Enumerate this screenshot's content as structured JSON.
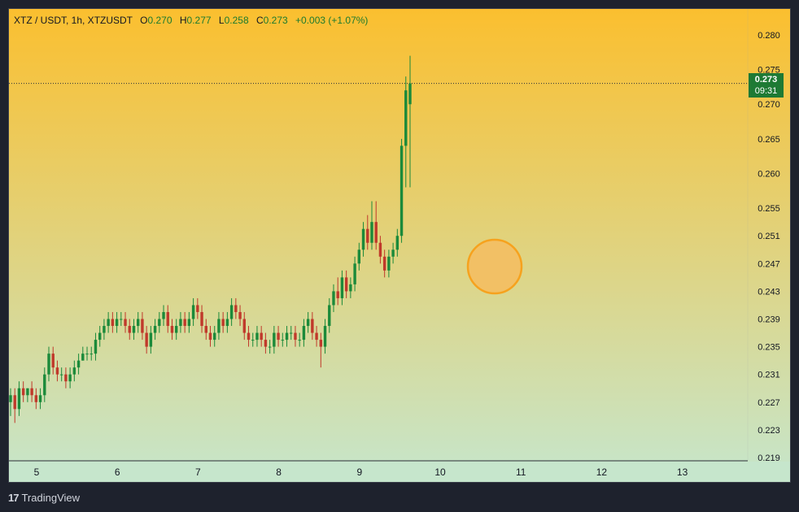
{
  "header": {
    "symbol": "XTZ / USDT, 1h, XTZUSDT",
    "open_label": "O",
    "open": "0.270",
    "high_label": "H",
    "high": "0.277",
    "low_label": "L",
    "low": "0.258",
    "close_label": "C",
    "close": "0.273",
    "change": "+0.003 (+1.07%)"
  },
  "price_tag": {
    "price": "0.273",
    "countdown": "09:31"
  },
  "footer": {
    "brand": "TradingView",
    "logo": "17"
  },
  "colors": {
    "up": "#1b8a3a",
    "down": "#c0392b",
    "bg_top": "#fbbf2f",
    "bg_bottom": "#c6e6cc",
    "marker": "#f6a21e"
  },
  "chart_data": {
    "type": "candlestick",
    "x_ticks": [
      "5",
      "6",
      "7",
      "8",
      "9",
      "10",
      "11",
      "12",
      "13"
    ],
    "y_ticks": [
      "0.280",
      "0.275",
      "0.270",
      "0.265",
      "0.260",
      "0.255",
      "0.251",
      "0.247",
      "0.243",
      "0.239",
      "0.235",
      "0.231",
      "0.227",
      "0.223",
      "0.219"
    ],
    "ylim": [
      0.219,
      0.28
    ],
    "last_price": 0.273,
    "candles": [
      [
        0.227,
        0.229,
        0.225,
        0.228
      ],
      [
        0.228,
        0.229,
        0.224,
        0.226
      ],
      [
        0.226,
        0.23,
        0.225,
        0.229
      ],
      [
        0.229,
        0.23,
        0.227,
        0.228
      ],
      [
        0.228,
        0.229,
        0.227,
        0.229
      ],
      [
        0.229,
        0.23,
        0.227,
        0.228
      ],
      [
        0.228,
        0.229,
        0.226,
        0.227
      ],
      [
        0.227,
        0.229,
        0.226,
        0.228
      ],
      [
        0.228,
        0.232,
        0.227,
        0.231
      ],
      [
        0.231,
        0.235,
        0.23,
        0.234
      ],
      [
        0.234,
        0.235,
        0.231,
        0.232
      ],
      [
        0.232,
        0.233,
        0.23,
        0.231
      ],
      [
        0.231,
        0.232,
        0.23,
        0.231
      ],
      [
        0.231,
        0.232,
        0.229,
        0.23
      ],
      [
        0.23,
        0.232,
        0.229,
        0.231
      ],
      [
        0.231,
        0.233,
        0.23,
        0.232
      ],
      [
        0.232,
        0.234,
        0.231,
        0.233
      ],
      [
        0.233,
        0.235,
        0.233,
        0.234
      ],
      [
        0.234,
        0.235,
        0.233,
        0.234
      ],
      [
        0.234,
        0.235,
        0.233,
        0.234
      ],
      [
        0.234,
        0.237,
        0.233,
        0.236
      ],
      [
        0.236,
        0.238,
        0.235,
        0.237
      ],
      [
        0.237,
        0.239,
        0.236,
        0.238
      ],
      [
        0.238,
        0.24,
        0.237,
        0.239
      ],
      [
        0.239,
        0.24,
        0.237,
        0.238
      ],
      [
        0.238,
        0.24,
        0.237,
        0.239
      ],
      [
        0.239,
        0.24,
        0.238,
        0.239
      ],
      [
        0.239,
        0.24,
        0.237,
        0.238
      ],
      [
        0.238,
        0.239,
        0.236,
        0.237
      ],
      [
        0.237,
        0.239,
        0.236,
        0.238
      ],
      [
        0.238,
        0.24,
        0.237,
        0.239
      ],
      [
        0.239,
        0.24,
        0.236,
        0.237
      ],
      [
        0.237,
        0.238,
        0.234,
        0.235
      ],
      [
        0.235,
        0.238,
        0.234,
        0.237
      ],
      [
        0.237,
        0.239,
        0.236,
        0.238
      ],
      [
        0.238,
        0.24,
        0.237,
        0.239
      ],
      [
        0.239,
        0.241,
        0.238,
        0.24
      ],
      [
        0.24,
        0.241,
        0.237,
        0.238
      ],
      [
        0.238,
        0.239,
        0.236,
        0.237
      ],
      [
        0.237,
        0.239,
        0.236,
        0.238
      ],
      [
        0.238,
        0.24,
        0.237,
        0.239
      ],
      [
        0.239,
        0.24,
        0.237,
        0.238
      ],
      [
        0.238,
        0.24,
        0.237,
        0.239
      ],
      [
        0.239,
        0.242,
        0.238,
        0.241
      ],
      [
        0.241,
        0.242,
        0.239,
        0.24
      ],
      [
        0.24,
        0.241,
        0.237,
        0.238
      ],
      [
        0.238,
        0.239,
        0.236,
        0.237
      ],
      [
        0.237,
        0.238,
        0.235,
        0.236
      ],
      [
        0.236,
        0.238,
        0.235,
        0.237
      ],
      [
        0.237,
        0.24,
        0.236,
        0.239
      ],
      [
        0.239,
        0.24,
        0.237,
        0.238
      ],
      [
        0.238,
        0.24,
        0.237,
        0.239
      ],
      [
        0.239,
        0.242,
        0.238,
        0.241
      ],
      [
        0.241,
        0.242,
        0.239,
        0.24
      ],
      [
        0.24,
        0.241,
        0.238,
        0.239
      ],
      [
        0.239,
        0.24,
        0.236,
        0.237
      ],
      [
        0.237,
        0.238,
        0.235,
        0.236
      ],
      [
        0.236,
        0.237,
        0.235,
        0.236
      ],
      [
        0.236,
        0.238,
        0.235,
        0.237
      ],
      [
        0.237,
        0.238,
        0.235,
        0.236
      ],
      [
        0.236,
        0.237,
        0.234,
        0.235
      ],
      [
        0.235,
        0.236,
        0.234,
        0.235
      ],
      [
        0.235,
        0.238,
        0.234,
        0.237
      ],
      [
        0.237,
        0.238,
        0.235,
        0.236
      ],
      [
        0.236,
        0.237,
        0.235,
        0.236
      ],
      [
        0.236,
        0.238,
        0.235,
        0.237
      ],
      [
        0.237,
        0.238,
        0.236,
        0.237
      ],
      [
        0.237,
        0.238,
        0.235,
        0.236
      ],
      [
        0.236,
        0.237,
        0.235,
        0.236
      ],
      [
        0.236,
        0.239,
        0.235,
        0.238
      ],
      [
        0.238,
        0.24,
        0.237,
        0.239
      ],
      [
        0.239,
        0.24,
        0.236,
        0.237
      ],
      [
        0.237,
        0.238,
        0.235,
        0.236
      ],
      [
        0.236,
        0.237,
        0.232,
        0.235
      ],
      [
        0.235,
        0.239,
        0.234,
        0.238
      ],
      [
        0.238,
        0.242,
        0.237,
        0.241
      ],
      [
        0.241,
        0.244,
        0.24,
        0.243
      ],
      [
        0.243,
        0.245,
        0.241,
        0.242
      ],
      [
        0.242,
        0.246,
        0.241,
        0.245
      ],
      [
        0.245,
        0.246,
        0.242,
        0.243
      ],
      [
        0.243,
        0.245,
        0.242,
        0.244
      ],
      [
        0.244,
        0.248,
        0.243,
        0.247
      ],
      [
        0.247,
        0.25,
        0.246,
        0.249
      ],
      [
        0.249,
        0.253,
        0.248,
        0.252
      ],
      [
        0.252,
        0.254,
        0.249,
        0.25
      ],
      [
        0.25,
        0.256,
        0.249,
        0.253
      ],
      [
        0.253,
        0.256,
        0.249,
        0.25
      ],
      [
        0.25,
        0.251,
        0.247,
        0.248
      ],
      [
        0.248,
        0.249,
        0.245,
        0.246
      ],
      [
        0.246,
        0.249,
        0.245,
        0.248
      ],
      [
        0.248,
        0.25,
        0.247,
        0.249
      ],
      [
        0.249,
        0.252,
        0.248,
        0.251
      ],
      [
        0.251,
        0.265,
        0.25,
        0.264
      ],
      [
        0.264,
        0.274,
        0.258,
        0.272
      ],
      [
        0.27,
        0.277,
        0.258,
        0.273
      ]
    ]
  }
}
